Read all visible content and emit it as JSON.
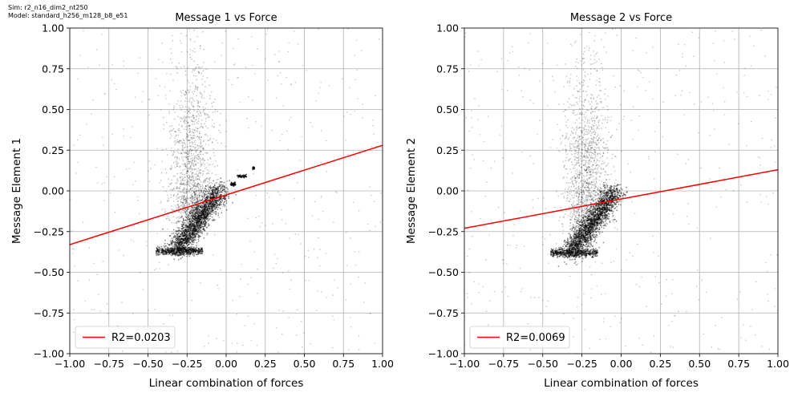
{
  "header": {
    "sim": "Sim: r2_n16_dim2_nt250",
    "model": "Model: standard_h256_m128_b8_e51"
  },
  "chart_data": [
    {
      "type": "scatter",
      "title": "Message 1 vs Force",
      "xlabel": "Linear combination of forces",
      "ylabel": "Message Element 1",
      "xlim": [
        -1.0,
        1.0
      ],
      "ylim": [
        -1.0,
        1.0
      ],
      "xticks": [
        "−1.00",
        "−0.75",
        "−0.50",
        "−0.25",
        "0.00",
        "0.25",
        "0.50",
        "0.75",
        "1.00"
      ],
      "yticks": [
        "−1.00",
        "−0.75",
        "−0.50",
        "−0.25",
        "0.00",
        "0.25",
        "0.50",
        "0.75",
        "1.00"
      ],
      "grid": true,
      "legend": {
        "location": "lower left",
        "label": "R2=0.0203"
      },
      "fit_line": {
        "color": "#ff0000",
        "x": [
          -1.0,
          1.0
        ],
        "y": [
          -0.33,
          0.28
        ]
      },
      "scatter_summary": {
        "color": "#000000",
        "dense_cluster_center": [
          -0.22,
          -0.15
        ],
        "dense_band_y": -0.37,
        "horizontal_streaks": [
          {
            "x": [
              0.17,
              0.18
            ],
            "y": 0.14
          },
          {
            "x": [
              0.07,
              0.13
            ],
            "y": 0.09
          },
          {
            "x": [
              0.03,
              0.06
            ],
            "y": 0.04
          }
        ]
      }
    },
    {
      "type": "scatter",
      "title": "Message 2 vs Force",
      "xlabel": "Linear combination of forces",
      "ylabel": "Message Element 2",
      "xlim": [
        -1.0,
        1.0
      ],
      "ylim": [
        -1.0,
        1.0
      ],
      "xticks": [
        "−1.00",
        "−0.75",
        "−0.50",
        "−0.25",
        "0.00",
        "0.25",
        "0.50",
        "0.75",
        "1.00"
      ],
      "yticks": [
        "−1.00",
        "−0.75",
        "−0.50",
        "−0.25",
        "0.00",
        "0.25",
        "0.50",
        "0.75",
        "1.00"
      ],
      "grid": true,
      "legend": {
        "location": "lower left",
        "label": "R2=0.0069"
      },
      "fit_line": {
        "color": "#ff0000",
        "x": [
          -1.0,
          1.0
        ],
        "y": [
          -0.23,
          0.13
        ]
      },
      "scatter_summary": {
        "color": "#000000",
        "dense_cluster_center": [
          -0.22,
          -0.18
        ],
        "dense_band_y": -0.38
      }
    }
  ]
}
